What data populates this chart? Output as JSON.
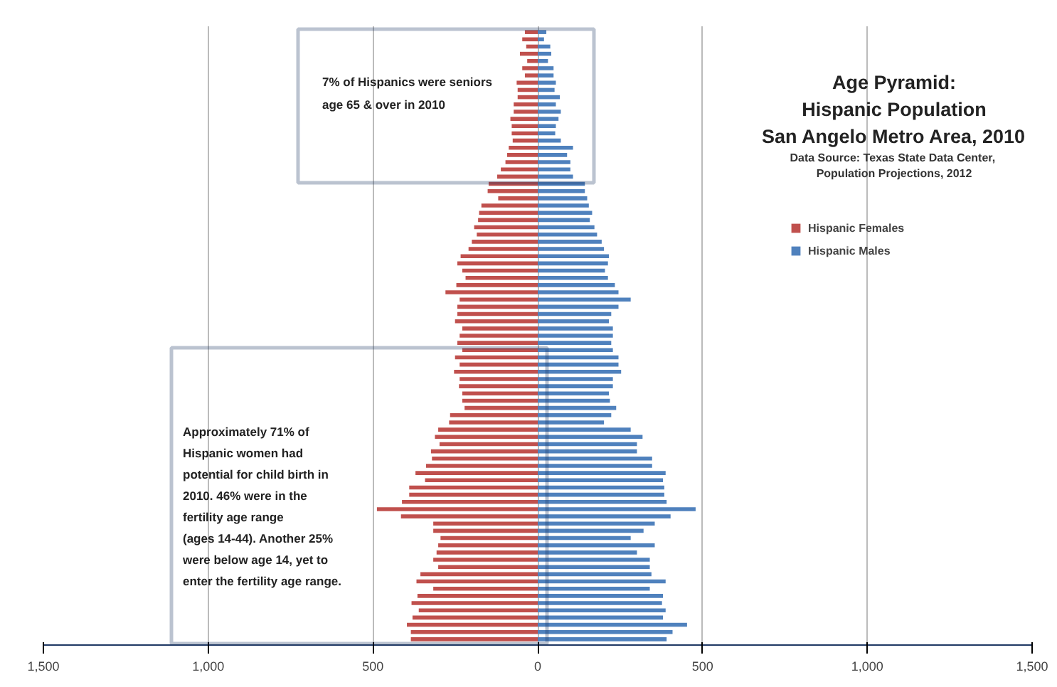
{
  "chart_data": {
    "type": "bar",
    "orientation": "horizontal",
    "stacked": true,
    "title": "Age Pyramid:\nHispanic Population\nSan Angelo Metro Area, 2010",
    "subtitle": "Data Source:  Texas State Data Center,\nPopulation Projections, 2012",
    "annotations": [
      "7% of Hispanics were seniors\nage 65 & over in 2010",
      "Approximately 71% of\nHispanic women had\npotential for child birth in\n2010.  46% were in the\nfertility age range\n(ages 14-44).  Another 25%\nwere below  age 14, yet to\nenter the fertility age range."
    ],
    "categories": [
      null,
      null,
      null,
      null,
      null,
      null,
      null,
      null,
      null,
      null,
      null,
      null,
      null,
      null,
      null,
      null,
      null,
      null,
      null,
      null,
      null,
      null,
      null,
      null,
      null,
      null,
      null,
      null,
      null,
      null,
      null,
      null,
      null,
      null,
      null,
      null,
      null,
      null,
      null,
      null,
      null,
      null,
      null,
      null,
      null,
      null,
      null,
      null,
      null,
      null,
      null,
      null,
      null,
      null,
      null,
      null,
      null,
      null,
      null,
      null,
      null,
      null,
      null,
      null,
      null,
      null,
      null,
      null,
      null,
      null,
      null,
      null,
      null,
      null,
      null,
      null,
      null,
      null,
      null,
      null,
      null,
      null,
      null,
      null,
      null
    ],
    "series": [
      {
        "name": "Hispanic Females",
        "color": "#c0504d",
        "values": [
          -39,
          -47,
          -35,
          -54,
          -32,
          -47,
          -39,
          -64,
          -61,
          -61,
          -73,
          -73,
          -83,
          -79,
          -79,
          -76,
          -88,
          -93,
          -98,
          -112,
          -123,
          -149,
          -152,
          -120,
          -171,
          -178,
          -181,
          -193,
          -185,
          -200,
          -210,
          -234,
          -244,
          -229,
          -219,
          -247,
          -280,
          -237,
          -244,
          -244,
          -251,
          -229,
          -237,
          -244,
          -229,
          -251,
          -237,
          -254,
          -237,
          -239,
          -229,
          -229,
          -222,
          -266,
          -269,
          -302,
          -312,
          -298,
          -324,
          -321,
          -339,
          -371,
          -342,
          -390,
          -390,
          -412,
          -488,
          -415,
          -317,
          -317,
          -295,
          -302,
          -307,
          -317,
          -302,
          -356,
          -368,
          -317,
          -365,
          -383,
          -361,
          -380,
          -397,
          -385,
          -385
        ]
      },
      {
        "name": "Hispanic Males",
        "color": "#4f81bd",
        "values": [
          26,
          19,
          38,
          41,
          31,
          48,
          48,
          55,
          51,
          67,
          55,
          70,
          63,
          55,
          53,
          70,
          107,
          89,
          99,
          99,
          107,
          143,
          143,
          150,
          155,
          165,
          158,
          172,
          180,
          194,
          201,
          216,
          213,
          204,
          213,
          234,
          245,
          282,
          245,
          223,
          216,
          228,
          228,
          223,
          228,
          245,
          245,
          253,
          228,
          228,
          216,
          219,
          238,
          223,
          201,
          282,
          318,
          301,
          301,
          347,
          347,
          388,
          380,
          384,
          384,
          391,
          479,
          403,
          355,
          321,
          282,
          355,
          301,
          340,
          340,
          345,
          388,
          340,
          380,
          377,
          388,
          380,
          453,
          409,
          391
        ]
      }
    ],
    "xlim": [
      -1500,
      1500
    ],
    "xticks": [
      {
        "value": -1500,
        "label": "1,500"
      },
      {
        "value": -1000,
        "label": "1,000"
      },
      {
        "value": -500,
        "label": "500"
      },
      0,
      500,
      {
        "value": 1000,
        "label": "1,000"
      },
      {
        "value": 1500,
        "label": "1,500"
      }
    ],
    "grid": "x",
    "legend": "top right",
    "tick_labels": "x"
  }
}
